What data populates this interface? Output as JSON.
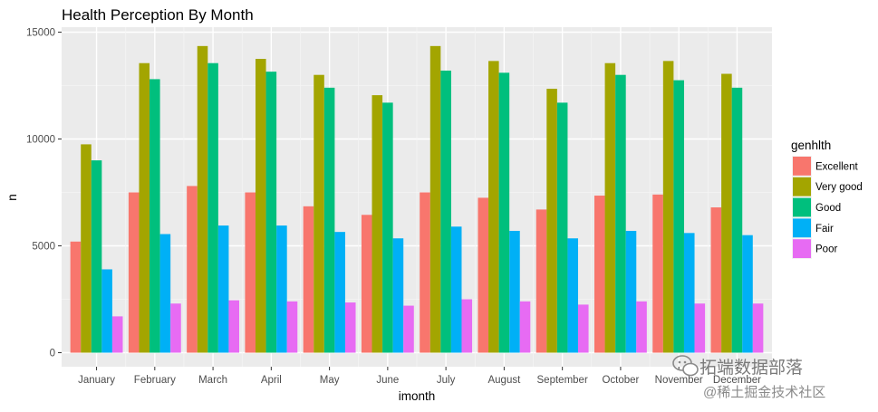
{
  "chart_data": {
    "type": "bar",
    "title": "Health Perception By Month",
    "xlabel": "imonth",
    "ylabel": "n",
    "ylim": [
      0,
      15000
    ],
    "yticks": [
      0,
      5000,
      10000,
      15000
    ],
    "grid": true,
    "legend": {
      "title": "genhlth",
      "position": "right"
    },
    "categories": [
      "January",
      "February",
      "March",
      "April",
      "May",
      "June",
      "July",
      "August",
      "September",
      "October",
      "November",
      "December"
    ],
    "series": [
      {
        "name": "Excellent",
        "color": "#F8766D",
        "values": [
          5200,
          7500,
          7800,
          7500,
          6850,
          6450,
          7500,
          7250,
          6700,
          7350,
          7400,
          6800
        ]
      },
      {
        "name": "Very good",
        "color": "#A3A500",
        "values": [
          9750,
          13550,
          14350,
          13750,
          13000,
          12050,
          14350,
          13650,
          12350,
          13550,
          13650,
          13050
        ]
      },
      {
        "name": "Good",
        "color": "#00BF7D",
        "values": [
          9000,
          12800,
          13550,
          13150,
          12400,
          11700,
          13200,
          13100,
          11700,
          13000,
          12750,
          12400
        ]
      },
      {
        "name": "Fair",
        "color": "#00B0F6",
        "values": [
          3900,
          5550,
          5950,
          5950,
          5650,
          5350,
          5900,
          5700,
          5350,
          5700,
          5600,
          5500
        ]
      },
      {
        "name": "Poor",
        "color": "#E76BF3",
        "values": [
          1700,
          2300,
          2450,
          2400,
          2350,
          2200,
          2500,
          2400,
          2250,
          2400,
          2300,
          2300
        ]
      }
    ]
  },
  "watermark": {
    "line1": "拓端数据部落",
    "line2": "@稀土掘金技术社区"
  },
  "icons": {
    "watermark_logo": "wechat-icon"
  }
}
